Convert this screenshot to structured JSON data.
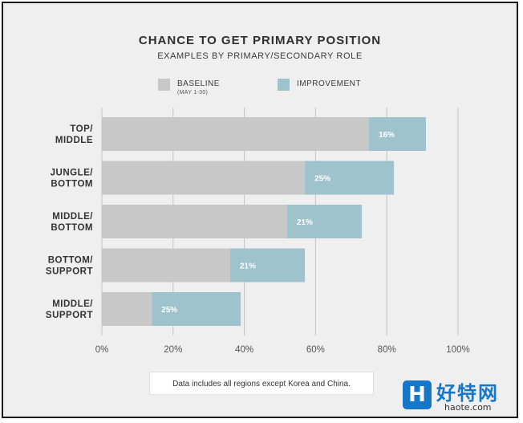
{
  "chart_data": {
    "type": "bar",
    "orientation": "horizontal",
    "stacked": true,
    "title": "CHANCE TO GET PRIMARY POSITION",
    "subtitle": "EXAMPLES BY PRIMARY/SECONDARY ROLE",
    "categories": [
      [
        "TOP/",
        "MIDDLE"
      ],
      [
        "JUNGLE/",
        "BOTTOM"
      ],
      [
        "MIDDLE/",
        "BOTTOM"
      ],
      [
        "BOTTOM/",
        "SUPPORT"
      ],
      [
        "MIDDLE/",
        "SUPPORT"
      ]
    ],
    "series": [
      {
        "name": "BASELINE",
        "values": [
          75,
          57,
          52,
          36,
          14
        ]
      },
      {
        "name": "IMPROVEMENT",
        "values": [
          16,
          25,
          21,
          21,
          25
        ]
      }
    ],
    "data_labels": [
      "16%",
      "25%",
      "21%",
      "21%",
      "25%"
    ],
    "xlim": [
      0,
      100
    ],
    "xticks": [
      0,
      20,
      40,
      60,
      80,
      100
    ],
    "xtick_labels": [
      "0%",
      "20%",
      "40%",
      "60%",
      "80%",
      "100%"
    ],
    "grid": true,
    "legend_position": "top"
  },
  "legend": {
    "baseline_label": "BASELINE",
    "baseline_sublabel": "(MAY 1-30)",
    "improvement_label": "IMPROVEMENT"
  },
  "note": "Data includes all regions except Korea and China.",
  "colors": {
    "baseline": "#c8c8c8",
    "improvement": "#9ec3cd",
    "grid": "#c4c4c4",
    "background": "#efefef"
  },
  "watermark": {
    "logo": "H",
    "title": "好特网",
    "url": "haote.com"
  }
}
